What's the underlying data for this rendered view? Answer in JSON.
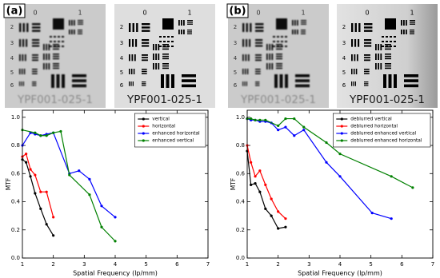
{
  "panels": [
    {
      "label": "(a)",
      "images": [
        {
          "caption": "YPF001-025-1",
          "top_labels": [
            "0",
            "1"
          ],
          "side_labels": [
            "2",
            "3",
            "4",
            "5",
            "6"
          ]
        },
        {
          "caption": "YPF001-025-1",
          "top_labels": [
            "0",
            "1"
          ],
          "side_labels": [
            "2",
            "3",
            "4",
            "5",
            "6"
          ]
        }
      ]
    },
    {
      "label": "(b)",
      "images": [
        {
          "caption": "YPF001-025-1",
          "top_labels": [
            "0",
            "1"
          ],
          "side_labels": [
            "2",
            "3",
            "4",
            "5",
            "6"
          ]
        },
        {
          "caption": "YPF001-025-1",
          "top_labels": [
            "0",
            "1"
          ],
          "side_labels": [
            "2",
            "3",
            "4",
            "5",
            "6"
          ]
        }
      ]
    }
  ],
  "chart_data": [
    {
      "type": "line",
      "x_label": "Spatial Frequency (lp/mm)",
      "y_label": "MTF",
      "xlim": [
        1,
        7
      ],
      "ylim": [
        0,
        1.05
      ],
      "xticks": [
        1,
        2,
        3,
        4,
        5,
        6,
        7
      ],
      "yticks": [
        {
          "value": 0,
          "label": "0.0"
        },
        0.2,
        0.4,
        0.6,
        0.8,
        {
          "value": 1,
          "label": "1.0"
        }
      ],
      "legend": "upper right",
      "series": [
        {
          "name": "vertical",
          "color": "#000000",
          "x": [
            1,
            1.12,
            1.26,
            1.41,
            1.59,
            1.78,
            2
          ],
          "values": [
            0.7,
            0.68,
            0.58,
            0.46,
            0.35,
            0.24,
            0.16
          ]
        },
        {
          "name": "horizontal",
          "color": "#ff0000",
          "x": [
            1,
            1.12,
            1.26,
            1.41,
            1.59,
            1.78,
            2
          ],
          "values": [
            0.72,
            0.74,
            0.63,
            0.59,
            0.47,
            0.47,
            0.29
          ]
        },
        {
          "name": "enhanced horizontal",
          "color": "#0000ff",
          "x": [
            1,
            1.26,
            1.41,
            1.59,
            1.78,
            2,
            2.52,
            2.83,
            3.17,
            3.56,
            4
          ],
          "values": [
            0.8,
            0.89,
            0.88,
            0.87,
            0.88,
            0.89,
            0.6,
            0.62,
            0.56,
            0.37,
            0.29
          ]
        },
        {
          "name": "enhanced vertical",
          "color": "#008000",
          "x": [
            1,
            1.41,
            1.59,
            1.78,
            2,
            2.24,
            2.52,
            3.17,
            3.56,
            4
          ],
          "values": [
            0.91,
            0.89,
            0.87,
            0.87,
            0.89,
            0.9,
            0.59,
            0.45,
            0.22,
            0.12
          ]
        }
      ]
    },
    {
      "type": "line",
      "x_label": "Spatial Frequency (lp/mm)",
      "y_label": "MTF",
      "xlim": [
        1,
        7
      ],
      "ylim": [
        0,
        1.05
      ],
      "xticks": [
        1,
        2,
        3,
        4,
        5,
        6,
        7
      ],
      "yticks": [
        {
          "value": 0,
          "label": "0.0"
        },
        0.2,
        0.4,
        0.6,
        0.8,
        {
          "value": 1,
          "label": "1.0"
        }
      ],
      "legend": "upper right",
      "series": [
        {
          "name": "deblurred vertical",
          "color": "#000000",
          "x": [
            1,
            1.12,
            1.26,
            1.41,
            1.59,
            1.78,
            2,
            2.24
          ],
          "values": [
            0.76,
            0.52,
            0.53,
            0.47,
            0.35,
            0.3,
            0.21,
            0.22
          ]
        },
        {
          "name": "deblurred horizontal",
          "color": "#ff0000",
          "x": [
            1,
            1.12,
            1.26,
            1.41,
            1.59,
            1.78,
            2,
            2.24
          ],
          "values": [
            0.8,
            0.68,
            0.58,
            0.62,
            0.52,
            0.42,
            0.33,
            0.28
          ]
        },
        {
          "name": "deblurred enhanced vertical",
          "color": "#0000ff",
          "x": [
            1,
            1.12,
            1.26,
            1.41,
            1.59,
            1.78,
            2,
            2.24,
            2.52,
            2.83,
            3.56,
            4,
            5.04,
            5.66
          ],
          "values": [
            0.99,
            0.98,
            0.98,
            0.97,
            0.97,
            0.96,
            0.91,
            0.93,
            0.87,
            0.91,
            0.68,
            0.58,
            0.32,
            0.28
          ]
        },
        {
          "name": "deblurred enhanced horizontal",
          "color": "#008000",
          "x": [
            1,
            1.12,
            1.26,
            1.41,
            1.59,
            2,
            2.24,
            2.52,
            2.83,
            3.56,
            4,
            5.66,
            6.35
          ],
          "values": [
            0.99,
            0.99,
            0.98,
            0.98,
            0.98,
            0.94,
            0.99,
            0.99,
            0.93,
            0.82,
            0.74,
            0.58,
            0.5
          ]
        }
      ]
    }
  ]
}
